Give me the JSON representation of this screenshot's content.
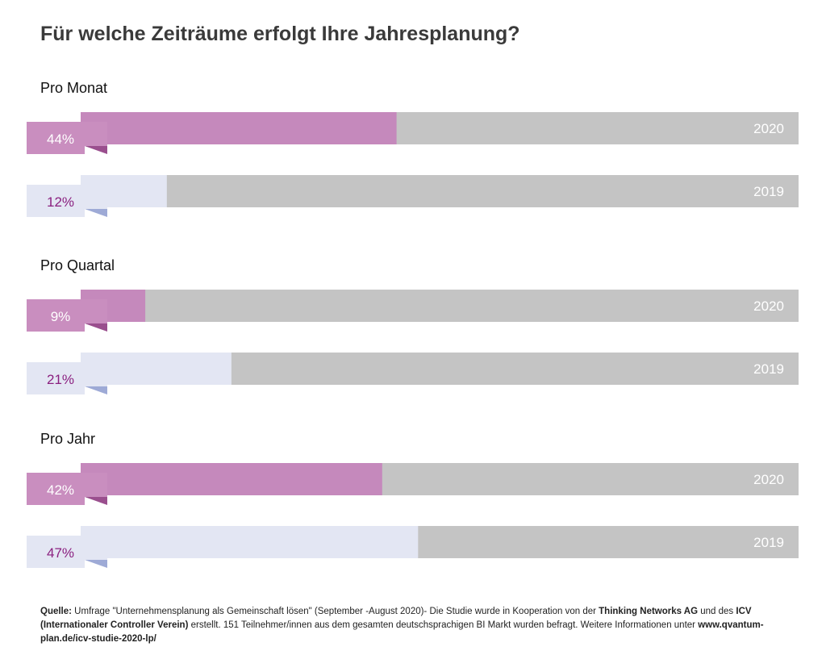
{
  "title": "Für welche Zeiträume erfolgt Ihre Jahresplanung?",
  "chart_data": {
    "type": "bar",
    "orientation": "horizontal",
    "xlim": [
      0,
      100
    ],
    "unit": "%",
    "groups": [
      {
        "label": "Pro Monat",
        "bars": [
          {
            "year": "2020",
            "value": 44,
            "value_label": "44%"
          },
          {
            "year": "2019",
            "value": 12,
            "value_label": "12%"
          }
        ]
      },
      {
        "label": "Pro Quartal",
        "bars": [
          {
            "year": "2020",
            "value": 9,
            "value_label": "9%"
          },
          {
            "year": "2019",
            "value": 21,
            "value_label": "21%"
          }
        ]
      },
      {
        "label": "Pro Jahr",
        "bars": [
          {
            "year": "2020",
            "value": 42,
            "value_label": "42%"
          },
          {
            "year": "2019",
            "value": 47,
            "value_label": "47%"
          }
        ]
      }
    ],
    "colors": {
      "bar_2020": "#c589bc",
      "tab_2020": "#c98ebf",
      "fold_2020": "#9a4f8e",
      "bar_2019": "#e3e6f3",
      "fold_2019": "#9eaad6",
      "track": "#c4c4c4",
      "text_on_dark": "#ffffff",
      "text_2019": "#8a1f7f"
    }
  },
  "footer": {
    "label": "Quelle:",
    "text1": " Umfrage \"Unternehmensplanung als Gemeinschaft lösen\" (September -August 2020)- Die Studie wurde in Kooperation von der ",
    "org1": "Thinking Networks AG",
    "text2": " und des ",
    "org2": "ICV (Internationaler Controller Verein)",
    "text3": " erstellt. 151 Teilnehmer/innen aus dem gesamten deutschsprachigen BI Markt wurden befragt. Weitere Informationen unter ",
    "url": "www.qvantum-plan.de/icv-studie-2020-lp/"
  }
}
